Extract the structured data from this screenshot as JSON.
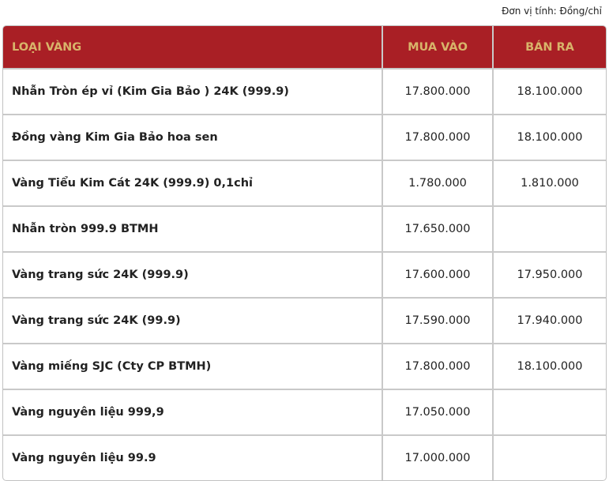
{
  "unit_note": "Đơn vị tính: Đồng/chỉ",
  "headers": {
    "type": "LOẠI VÀNG",
    "buy": "MUA VÀO",
    "sell": "BÁN RA"
  },
  "accent_color": "#a91f25",
  "rows": [
    {
      "name": "Nhẫn Tròn ép vỉ (Kim Gia Bảo ) 24K (999.9)",
      "buy": "17.800.000",
      "sell": "18.100.000"
    },
    {
      "name": "Đồng vàng Kim Gia Bảo hoa sen",
      "buy": "17.800.000",
      "sell": "18.100.000"
    },
    {
      "name": "Vàng Tiểu Kim Cát 24K (999.9) 0,1chỉ",
      "buy": "1.780.000",
      "sell": "1.810.000"
    },
    {
      "name": "Nhẫn tròn 999.9 BTMH",
      "buy": "17.650.000",
      "sell": ""
    },
    {
      "name": "Vàng trang sức 24K (999.9)",
      "buy": "17.600.000",
      "sell": "17.950.000"
    },
    {
      "name": "Vàng trang sức 24K (99.9)",
      "buy": "17.590.000",
      "sell": "17.940.000"
    },
    {
      "name": "Vàng miếng SJC (Cty CP BTMH)",
      "buy": "17.800.000",
      "sell": "18.100.000"
    },
    {
      "name": "Vàng nguyên liệu 999,9",
      "buy": "17.050.000",
      "sell": ""
    },
    {
      "name": "Vàng nguyên liệu 99.9",
      "buy": "17.000.000",
      "sell": ""
    }
  ]
}
